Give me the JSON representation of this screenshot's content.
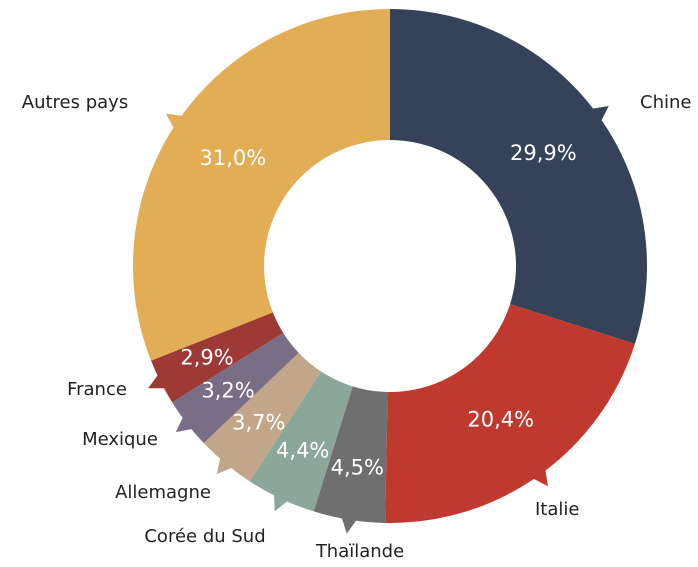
{
  "chart_data": {
    "type": "donut",
    "categories": [
      "Chine",
      "Italie",
      "Thaïlande",
      "Corée du Sud",
      "Allemagne",
      "Mexique",
      "France",
      "Autres pays"
    ],
    "values": [
      29.9,
      20.4,
      4.5,
      4.4,
      3.7,
      3.2,
      2.9,
      31.0
    ],
    "value_labels": [
      "29,9%",
      "20,4%",
      "4,5%",
      "4,4%",
      "3,7%",
      "3,2%",
      "2,9%",
      "31,0%"
    ],
    "colors": [
      "#36425a",
      "#c0392f",
      "#6f6f6f",
      "#8aa79a",
      "#c2a68a",
      "#7a6e86",
      "#9e3a35",
      "#e2ad55"
    ]
  }
}
